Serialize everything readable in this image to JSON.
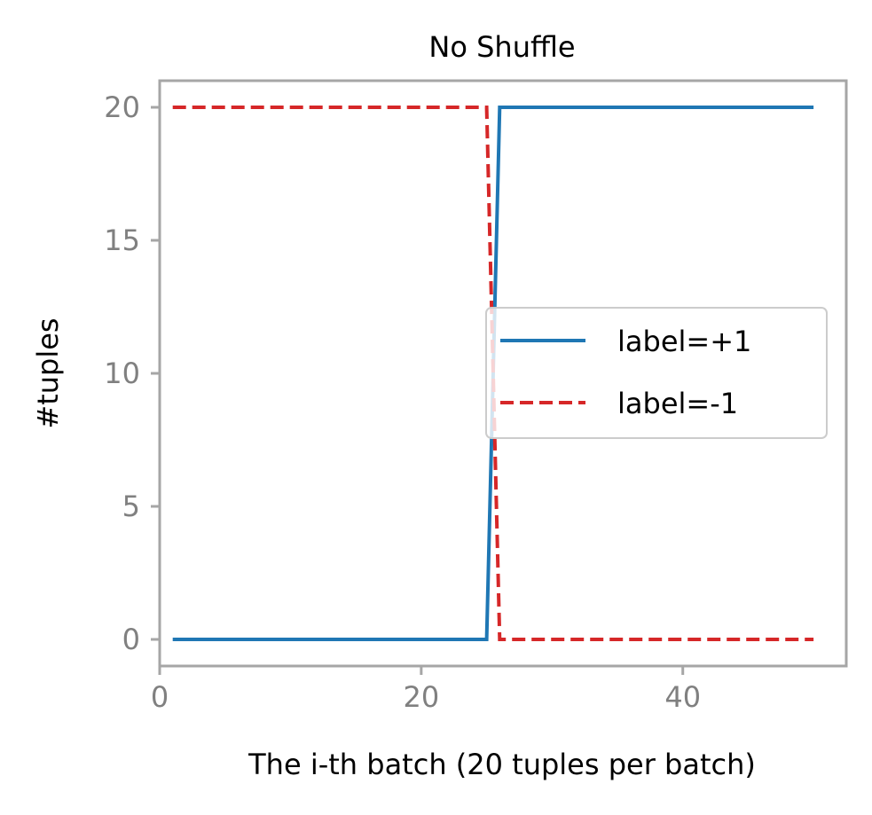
{
  "chart_data": {
    "type": "line",
    "title": "No Shuffle",
    "xlabel": "The i-th batch (20 tuples per batch)",
    "ylabel": "#tuples",
    "xlim": [
      0,
      52.5
    ],
    "ylim": [
      -1,
      21
    ],
    "xticks": [
      0,
      20,
      40
    ],
    "yticks": [
      0,
      5,
      10,
      15,
      20
    ],
    "grid": false,
    "legend_position": "right",
    "series": [
      {
        "name": "label=+1",
        "color": "#1f77b4",
        "style": "solid",
        "x": [
          1,
          25,
          26,
          50
        ],
        "y": [
          0,
          0,
          20,
          20
        ]
      },
      {
        "name": "label=-1",
        "color": "#d62728",
        "style": "dashed",
        "x": [
          1,
          25,
          26,
          50
        ],
        "y": [
          20,
          20,
          0,
          0
        ]
      }
    ]
  }
}
